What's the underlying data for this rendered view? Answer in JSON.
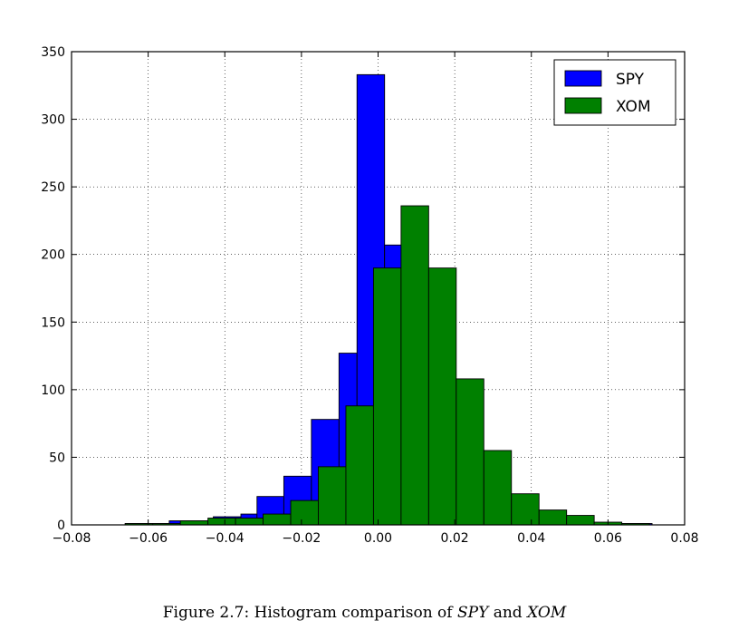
{
  "chart_data": {
    "type": "bar",
    "bin_width": 0.0072,
    "xlim": [
      -0.08,
      0.08
    ],
    "ylim": [
      0,
      350
    ],
    "xticks": [
      "−0.08",
      "−0.06",
      "−0.04",
      "−0.02",
      "0.00",
      "0.02",
      "0.04",
      "0.06",
      "0.08"
    ],
    "xtick_values": [
      -0.08,
      -0.06,
      -0.04,
      -0.02,
      0.0,
      0.02,
      0.04,
      0.06,
      0.08
    ],
    "yticks": [
      "0",
      "50",
      "100",
      "150",
      "200",
      "250",
      "300",
      "350"
    ],
    "ytick_values": [
      0,
      50,
      100,
      150,
      200,
      250,
      300,
      350
    ],
    "grid": true,
    "legend_position": "top-right",
    "series": [
      {
        "name": "SPY",
        "color": "#0000ff",
        "bins": [
          {
            "x0": -0.066,
            "x1": -0.0545,
            "y": 1
          },
          {
            "x0": -0.0545,
            "x1": -0.043,
            "y": 3
          },
          {
            "x0": -0.043,
            "x1": -0.0358,
            "y": 6
          },
          {
            "x0": -0.0358,
            "x1": -0.0316,
            "y": 8
          },
          {
            "x0": -0.0316,
            "x1": -0.0246,
            "y": 21
          },
          {
            "x0": -0.0246,
            "x1": -0.0174,
            "y": 36
          },
          {
            "x0": -0.0174,
            "x1": -0.0102,
            "y": 78
          },
          {
            "x0": -0.0102,
            "x1": -0.0055,
            "y": 127
          },
          {
            "x0": -0.0055,
            "x1": 0.0017,
            "y": 333
          },
          {
            "x0": 0.0017,
            "x1": 0.0089,
            "y": 207
          },
          {
            "x0": 0.0089,
            "x1": 0.0161,
            "y": 91
          },
          {
            "x0": 0.0161,
            "x1": 0.0233,
            "y": 43
          },
          {
            "x0": 0.0233,
            "x1": 0.0305,
            "y": 16
          },
          {
            "x0": 0.0305,
            "x1": 0.0377,
            "y": 8
          },
          {
            "x0": 0.0377,
            "x1": 0.0449,
            "y": 6
          },
          {
            "x0": 0.0449,
            "x1": 0.052,
            "y": 2
          },
          {
            "x0": 0.059,
            "x1": 0.0715,
            "y": 1
          }
        ]
      },
      {
        "name": "XOM",
        "color": "#008000",
        "bins": [
          {
            "x0": -0.066,
            "x1": -0.0588,
            "y": 1
          },
          {
            "x0": -0.0588,
            "x1": -0.0516,
            "y": 1
          },
          {
            "x0": -0.0516,
            "x1": -0.0444,
            "y": 3
          },
          {
            "x0": -0.0444,
            "x1": -0.0372,
            "y": 5
          },
          {
            "x0": -0.0372,
            "x1": -0.03,
            "y": 5
          },
          {
            "x0": -0.03,
            "x1": -0.0228,
            "y": 8
          },
          {
            "x0": -0.0228,
            "x1": -0.0156,
            "y": 18
          },
          {
            "x0": -0.0156,
            "x1": -0.0084,
            "y": 43
          },
          {
            "x0": -0.0084,
            "x1": -0.0012,
            "y": 88
          },
          {
            "x0": -0.0012,
            "x1": 0.006,
            "y": 190
          },
          {
            "x0": 0.006,
            "x1": 0.0132,
            "y": 236
          },
          {
            "x0": 0.0132,
            "x1": 0.0204,
            "y": 190
          },
          {
            "x0": 0.0204,
            "x1": 0.0276,
            "y": 108
          },
          {
            "x0": 0.0276,
            "x1": 0.0348,
            "y": 55
          },
          {
            "x0": 0.0348,
            "x1": 0.042,
            "y": 23
          },
          {
            "x0": 0.042,
            "x1": 0.0492,
            "y": 11
          },
          {
            "x0": 0.0492,
            "x1": 0.0564,
            "y": 7
          },
          {
            "x0": 0.0564,
            "x1": 0.0636,
            "y": 2
          },
          {
            "x0": 0.0636,
            "x1": 0.0708,
            "y": 1
          }
        ]
      }
    ]
  },
  "caption": {
    "prefix": "Figure 2.7: Histogram comparison of ",
    "term1": "SPY",
    "middle": " and ",
    "term2": "XOM"
  }
}
